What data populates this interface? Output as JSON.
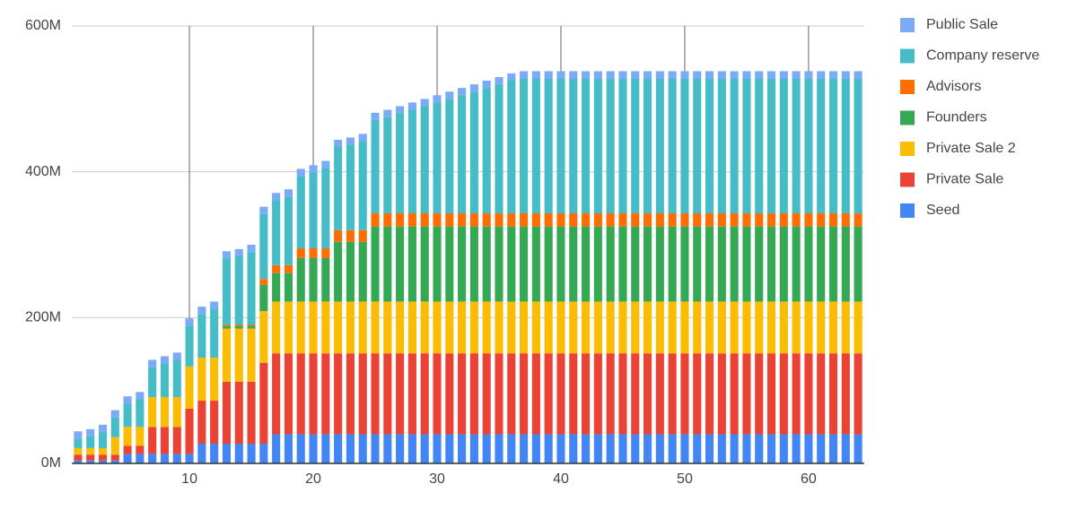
{
  "chart_data": {
    "type": "stacked_bar",
    "x": [
      1,
      2,
      3,
      4,
      5,
      6,
      7,
      8,
      9,
      10,
      11,
      12,
      13,
      14,
      15,
      16,
      17,
      18,
      19,
      20,
      21,
      22,
      23,
      24,
      25,
      26,
      27,
      28,
      29,
      30,
      31,
      32,
      33,
      34,
      35,
      36,
      37,
      38,
      39,
      40,
      41,
      42,
      43,
      44,
      45,
      46,
      47,
      48,
      49,
      50,
      51,
      52,
      53,
      54,
      55,
      56,
      57,
      58,
      59,
      60,
      61,
      62,
      63,
      64
    ],
    "xlim": [
      0.5,
      64.5
    ],
    "xticks": [
      10,
      20,
      30,
      40,
      50,
      60
    ],
    "ylim": [
      0,
      600
    ],
    "yticks": [
      {
        "value": 0,
        "label": "0M"
      },
      {
        "value": 200,
        "label": "200M"
      },
      {
        "value": 400,
        "label": "400M"
      },
      {
        "value": 600,
        "label": "600M"
      }
    ],
    "grid": true,
    "legend": "right",
    "series": [
      {
        "name": "Seed",
        "color": "#4285f4",
        "values": [
          4,
          4,
          4,
          4,
          13,
          13,
          13,
          13,
          13,
          13,
          27,
          27,
          27,
          27,
          27,
          27,
          40,
          40,
          40,
          40,
          40,
          40,
          40,
          40,
          40,
          40,
          40,
          40,
          40,
          40,
          40,
          40,
          40,
          40,
          40,
          40,
          40,
          40,
          40,
          40,
          40,
          40,
          40,
          40,
          40,
          40,
          40,
          40,
          40,
          40,
          40,
          40,
          40,
          40,
          40,
          40,
          40,
          40,
          40,
          40,
          40,
          40,
          40,
          40
        ]
      },
      {
        "name": "Private Sale",
        "color": "#ea4335",
        "values": [
          8,
          8,
          8,
          8,
          11,
          11,
          37,
          37,
          37,
          62,
          59,
          59,
          85,
          85,
          85,
          111,
          111,
          111,
          111,
          111,
          111,
          111,
          111,
          111,
          111,
          111,
          111,
          111,
          111,
          111,
          111,
          111,
          111,
          111,
          111,
          111,
          111,
          111,
          111,
          111,
          111,
          111,
          111,
          111,
          111,
          111,
          111,
          111,
          111,
          111,
          111,
          111,
          111,
          111,
          111,
          111,
          111,
          111,
          111,
          111,
          111,
          111,
          111,
          111
        ]
      },
      {
        "name": "Private Sale 2",
        "color": "#fbbc04",
        "values": [
          9,
          9,
          9,
          24,
          26,
          26,
          41,
          41,
          41,
          58,
          59,
          59,
          73,
          73,
          73,
          71,
          71,
          71,
          71,
          71,
          71,
          71,
          71,
          71,
          71,
          71,
          71,
          71,
          71,
          71,
          71,
          71,
          71,
          71,
          71,
          71,
          71,
          71,
          71,
          71,
          71,
          71,
          71,
          71,
          71,
          71,
          71,
          71,
          71,
          71,
          71,
          71,
          71,
          71,
          71,
          71,
          71,
          71,
          71,
          71,
          71,
          71,
          71,
          71
        ]
      },
      {
        "name": "Founders",
        "color": "#34a853",
        "values": [
          0,
          0,
          0,
          0,
          0,
          0,
          0,
          0,
          0,
          0,
          0,
          0,
          3,
          3,
          3,
          36,
          39,
          39,
          60,
          60,
          60,
          82,
          82,
          82,
          103,
          103,
          103,
          103,
          103,
          103,
          103,
          103,
          103,
          103,
          103,
          103,
          103,
          103,
          103,
          103,
          103,
          103,
          103,
          103,
          103,
          103,
          103,
          103,
          103,
          103,
          103,
          103,
          103,
          103,
          103,
          103,
          103,
          103,
          103,
          103,
          103,
          103,
          103,
          103
        ]
      },
      {
        "name": "Advisors",
        "color": "#ff6d01",
        "values": [
          0,
          0,
          0,
          0,
          0,
          0,
          0,
          0,
          0,
          0,
          0,
          0,
          2,
          2,
          2,
          8,
          11,
          11,
          13,
          13,
          13,
          16,
          16,
          16,
          18,
          18,
          18,
          18,
          18,
          18,
          18,
          18,
          18,
          18,
          18,
          18,
          18,
          18,
          18,
          18,
          18,
          18,
          18,
          18,
          18,
          18,
          18,
          18,
          18,
          18,
          18,
          18,
          18,
          18,
          18,
          18,
          18,
          18,
          18,
          18,
          18,
          18,
          18,
          18
        ]
      },
      {
        "name": "Company reserve",
        "color": "#46bdc6",
        "values": [
          13,
          16,
          22,
          27,
          32,
          38,
          41,
          46,
          51,
          56,
          60,
          67,
          91,
          94,
          100,
          89,
          89,
          94,
          99,
          104,
          110,
          114,
          117,
          122,
          128,
          132,
          137,
          142,
          147,
          152,
          157,
          162,
          167,
          172,
          177,
          182,
          185,
          185,
          185,
          185,
          185,
          185,
          185,
          185,
          185,
          185,
          185,
          185,
          185,
          185,
          185,
          185,
          185,
          185,
          185,
          185,
          185,
          185,
          185,
          185,
          185,
          185,
          185,
          185
        ]
      },
      {
        "name": "Public Sale",
        "color": "#7baaf7",
        "values": [
          10,
          10,
          10,
          10,
          10,
          10,
          10,
          10,
          10,
          10,
          10,
          10,
          10,
          10,
          10,
          10,
          10,
          10,
          10,
          10,
          10,
          10,
          10,
          10,
          10,
          10,
          10,
          10,
          10,
          10,
          10,
          10,
          10,
          10,
          10,
          10,
          10,
          10,
          10,
          10,
          10,
          10,
          10,
          10,
          10,
          10,
          10,
          10,
          10,
          10,
          10,
          10,
          10,
          10,
          10,
          10,
          10,
          10,
          10,
          10,
          10,
          10,
          10,
          10
        ]
      }
    ]
  }
}
